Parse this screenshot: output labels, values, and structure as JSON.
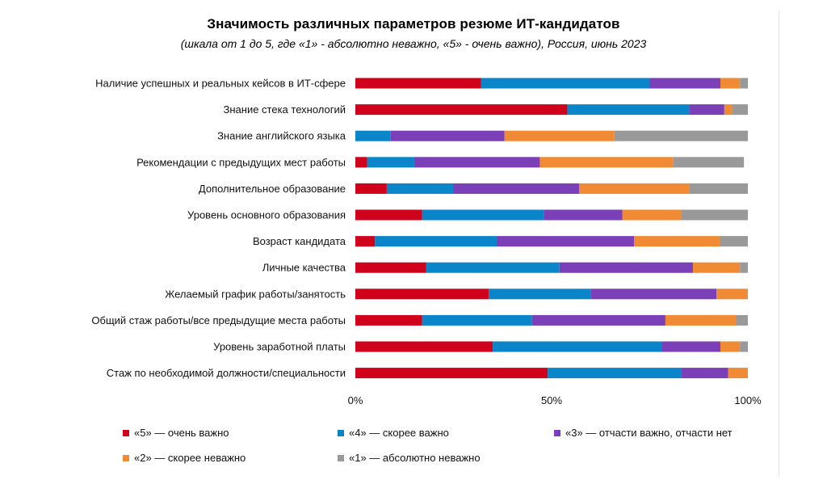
{
  "chart_data": {
    "type": "bar",
    "orientation": "horizontal",
    "stacked": "percent",
    "title": "Значимость различных параметров резюме ИТ-кандидатов",
    "subtitle": "(шкала от 1 до 5, где «1» - абсолютно неважно, «5» - очень важно), Россия, июнь 2023",
    "categories": [
      "Наличие успешных и реальных кейсов в ИТ-сфере",
      "Знание стека технологий",
      "Знание английского языка",
      "Рекомендации с предыдущих мест работы",
      "Дополнительное образование",
      "Уровень основного образования",
      "Возраст кандидата",
      "Личные качества",
      "Желаемый график работы/занятость",
      "Общий стаж работы/все предыдущие места работы",
      "Уровень заработной платы",
      "Стаж по необходимой должности/специальности"
    ],
    "series": [
      {
        "name": "«5» — очень важно",
        "color": "#d0021b",
        "values": [
          32,
          54,
          0,
          3,
          8,
          17,
          5,
          18,
          34,
          17,
          35,
          49
        ]
      },
      {
        "name": "«4» — скорее важно",
        "color": "#0a85c9",
        "values": [
          43,
          31,
          9,
          12,
          17,
          31,
          31,
          34,
          26,
          28,
          43,
          34
        ]
      },
      {
        "name": "«3» — отчасти важно, отчасти нет",
        "color": "#7b3fb7",
        "values": [
          18,
          9,
          29,
          32,
          32,
          20,
          35,
          34,
          32,
          34,
          15,
          12
        ]
      },
      {
        "name": "«2» — скорее неважно",
        "color": "#f08a34",
        "values": [
          5,
          2,
          28,
          34,
          28,
          15,
          22,
          12,
          8,
          18,
          5,
          5
        ]
      },
      {
        "name": "«1» — абсолютно неважно",
        "color": "#999999",
        "values": [
          2,
          4,
          34,
          18,
          15,
          17,
          7,
          2,
          0,
          3,
          2,
          0
        ]
      }
    ],
    "xlim": [
      0,
      100
    ],
    "ticks": [
      "0%",
      "50%",
      "100%"
    ],
    "grid": false,
    "legend_position": "bottom"
  }
}
